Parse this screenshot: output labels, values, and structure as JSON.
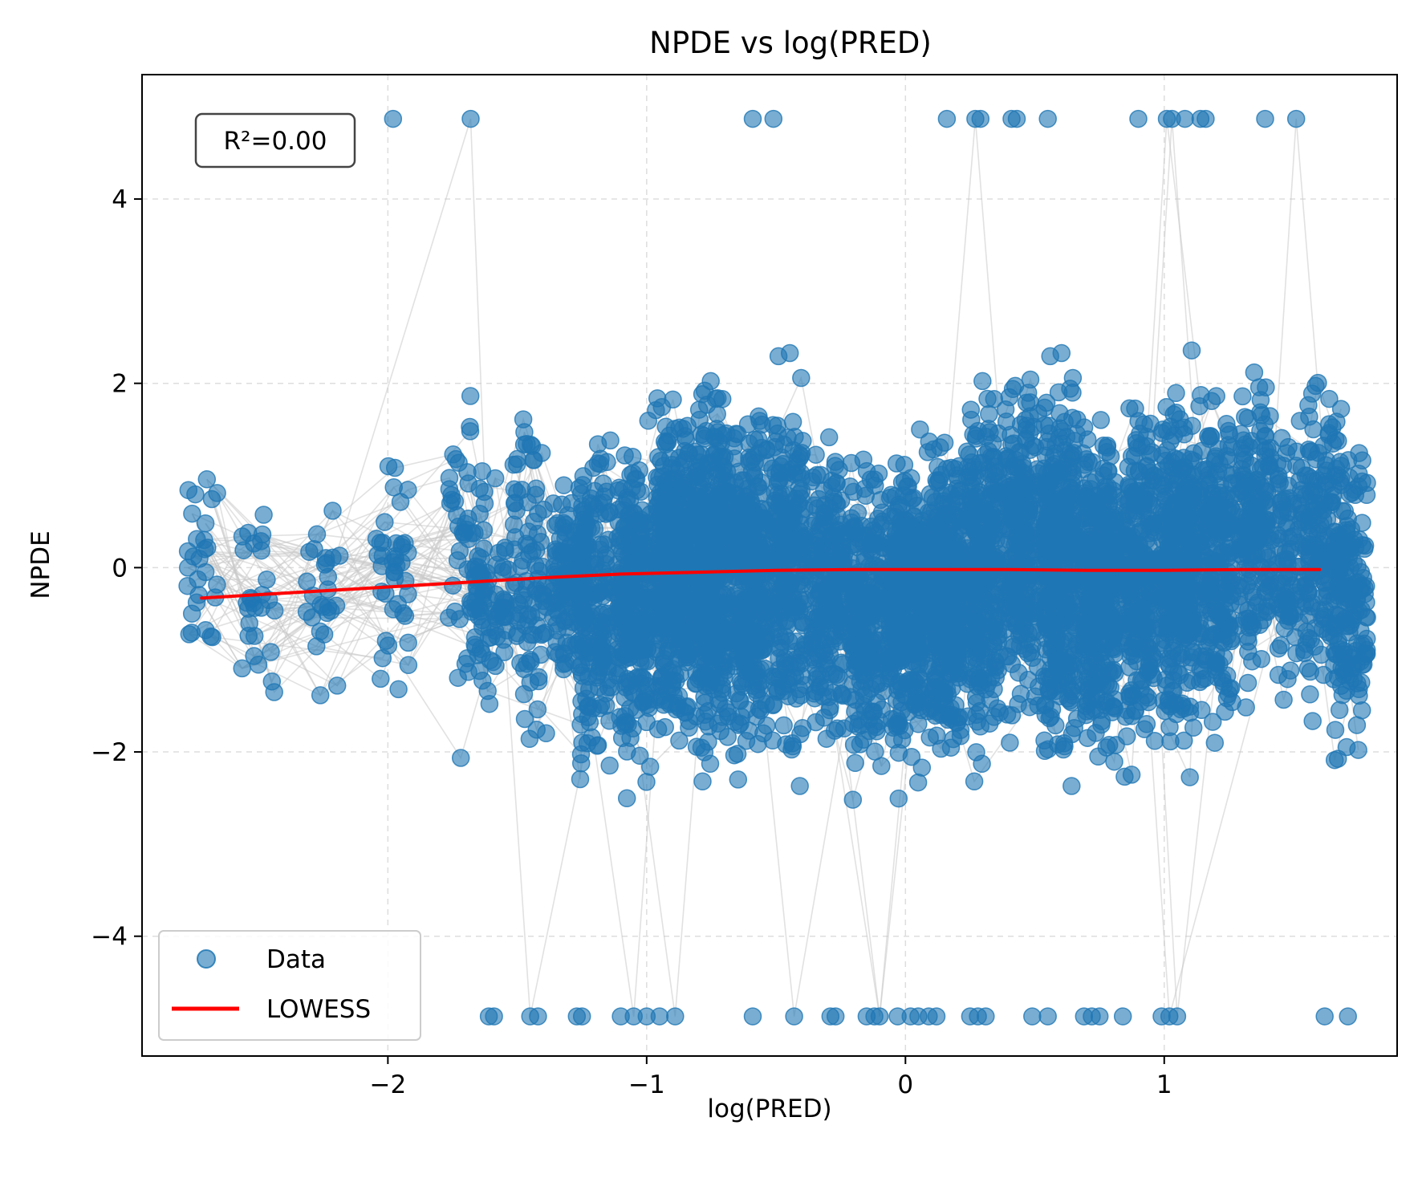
{
  "chart_data": {
    "type": "scatter",
    "title": "NPDE vs log(PRED)",
    "xlabel": "log(PRED)",
    "ylabel": "NPDE",
    "xlim": [
      -2.95,
      1.9
    ],
    "ylim": [
      -5.3,
      5.35
    ],
    "grid": true,
    "legend_placement": "lower-left",
    "annotation": "R²=0.00",
    "x_ticks": [
      -2,
      -1,
      0,
      1
    ],
    "x_tick_labels": [
      "−2",
      "−1",
      "0",
      "1"
    ],
    "y_ticks": [
      -4,
      -2,
      0,
      2,
      4
    ],
    "y_tick_labels": [
      "−4",
      "−2",
      "0",
      "2",
      "4"
    ],
    "colors": {
      "data": "#1f77b4",
      "lowess": "#ff0000",
      "connector": "#c8c8c8",
      "grid": "#dddddd"
    },
    "series": [
      {
        "name": "Data",
        "kind": "scatter",
        "clusters": [
          {
            "x": -2.72,
            "count": 28,
            "y_min": -1.6,
            "y_max": 1.35
          },
          {
            "x": -2.5,
            "count": 28,
            "y_min": -2.05,
            "y_max": 1.5
          },
          {
            "x": -2.25,
            "count": 26,
            "y_min": -1.45,
            "y_max": 1.2
          },
          {
            "x": -1.98,
            "count": 40,
            "y_min": -1.75,
            "y_max": 1.55
          },
          {
            "x": -1.7,
            "count": 55,
            "y_min": -2.2,
            "y_max": 2.2
          },
          {
            "x": -1.6,
            "count": 70,
            "y_min": -1.8,
            "y_max": 1.0
          },
          {
            "x": -1.45,
            "count": 90,
            "y_min": -2.6,
            "y_max": 2.35
          },
          {
            "x": -1.3,
            "count": 130,
            "y_min": -1.5,
            "y_max": 1.2
          },
          {
            "x": -1.2,
            "count": 180,
            "y_min": -2.6,
            "y_max": 1.9
          },
          {
            "x": -1.05,
            "count": 260,
            "y_min": -2.6,
            "y_max": 1.8
          },
          {
            "x": -0.9,
            "count": 350,
            "y_min": -2.6,
            "y_max": 2.6
          },
          {
            "x": -0.75,
            "count": 420,
            "y_min": -2.6,
            "y_max": 2.6
          },
          {
            "x": -0.6,
            "count": 320,
            "y_min": -2.6,
            "y_max": 2.2
          },
          {
            "x": -0.45,
            "count": 260,
            "y_min": -2.6,
            "y_max": 2.6
          },
          {
            "x": -0.3,
            "count": 220,
            "y_min": -2.35,
            "y_max": 1.95
          },
          {
            "x": -0.15,
            "count": 240,
            "y_min": -2.6,
            "y_max": 1.75
          },
          {
            "x": 0.0,
            "count": 330,
            "y_min": -2.6,
            "y_max": 1.7
          },
          {
            "x": 0.15,
            "count": 360,
            "y_min": -2.6,
            "y_max": 2.05
          },
          {
            "x": 0.3,
            "count": 300,
            "y_min": -2.6,
            "y_max": 2.6
          },
          {
            "x": 0.45,
            "count": 250,
            "y_min": -2.2,
            "y_max": 2.6
          },
          {
            "x": 0.6,
            "count": 380,
            "y_min": -2.6,
            "y_max": 2.6
          },
          {
            "x": 0.75,
            "count": 360,
            "y_min": -2.6,
            "y_max": 2.2
          },
          {
            "x": 0.9,
            "count": 260,
            "y_min": -2.35,
            "y_max": 2.35
          },
          {
            "x": 1.05,
            "count": 340,
            "y_min": -2.6,
            "y_max": 2.6
          },
          {
            "x": 1.2,
            "count": 230,
            "y_min": -2.35,
            "y_max": 2.6
          },
          {
            "x": 1.35,
            "count": 180,
            "y_min": -1.75,
            "y_max": 2.6
          },
          {
            "x": 1.5,
            "count": 120,
            "y_min": -1.95,
            "y_max": 2.2
          },
          {
            "x": 1.62,
            "count": 140,
            "y_min": -1.95,
            "y_max": 2.6
          },
          {
            "x": 1.72,
            "count": 160,
            "y_min": -2.6,
            "y_max": 1.75
          }
        ],
        "points": [
          {
            "x": -1.98,
            "y": 4.87
          },
          {
            "x": -1.68,
            "y": 4.87
          },
          {
            "x": -0.59,
            "y": 4.87
          },
          {
            "x": -0.51,
            "y": 4.87
          },
          {
            "x": 0.16,
            "y": 4.87
          },
          {
            "x": 0.27,
            "y": 4.87
          },
          {
            "x": 0.29,
            "y": 4.87
          },
          {
            "x": 0.41,
            "y": 4.87
          },
          {
            "x": 0.43,
            "y": 4.87
          },
          {
            "x": 0.55,
            "y": 4.87
          },
          {
            "x": 0.9,
            "y": 4.87
          },
          {
            "x": 1.01,
            "y": 4.87
          },
          {
            "x": 1.03,
            "y": 4.87
          },
          {
            "x": 1.08,
            "y": 4.87
          },
          {
            "x": 1.14,
            "y": 4.87
          },
          {
            "x": 1.16,
            "y": 4.87
          },
          {
            "x": 1.39,
            "y": 4.87
          },
          {
            "x": 1.51,
            "y": 4.87
          },
          {
            "x": -1.61,
            "y": -4.87
          },
          {
            "x": -1.59,
            "y": -4.87
          },
          {
            "x": -1.45,
            "y": -4.87
          },
          {
            "x": -1.42,
            "y": -4.87
          },
          {
            "x": -1.27,
            "y": -4.87
          },
          {
            "x": -1.25,
            "y": -4.87
          },
          {
            "x": -1.1,
            "y": -4.87
          },
          {
            "x": -1.05,
            "y": -4.87
          },
          {
            "x": -1.0,
            "y": -4.87
          },
          {
            "x": -0.95,
            "y": -4.87
          },
          {
            "x": -0.89,
            "y": -4.87
          },
          {
            "x": -0.59,
            "y": -4.87
          },
          {
            "x": -0.43,
            "y": -4.87
          },
          {
            "x": -0.29,
            "y": -4.87
          },
          {
            "x": -0.27,
            "y": -4.87
          },
          {
            "x": -0.15,
            "y": -4.87
          },
          {
            "x": -0.12,
            "y": -4.87
          },
          {
            "x": -0.1,
            "y": -4.87
          },
          {
            "x": -0.03,
            "y": -4.87
          },
          {
            "x": 0.02,
            "y": -4.87
          },
          {
            "x": 0.05,
            "y": -4.87
          },
          {
            "x": 0.09,
            "y": -4.87
          },
          {
            "x": 0.12,
            "y": -4.87
          },
          {
            "x": 0.25,
            "y": -4.87
          },
          {
            "x": 0.28,
            "y": -4.87
          },
          {
            "x": 0.31,
            "y": -4.87
          },
          {
            "x": 0.49,
            "y": -4.87
          },
          {
            "x": 0.55,
            "y": -4.87
          },
          {
            "x": 0.69,
            "y": -4.87
          },
          {
            "x": 0.72,
            "y": -4.87
          },
          {
            "x": 0.75,
            "y": -4.87
          },
          {
            "x": 0.84,
            "y": -4.87
          },
          {
            "x": 0.99,
            "y": -4.87
          },
          {
            "x": 1.02,
            "y": -4.87
          },
          {
            "x": 1.05,
            "y": -4.87
          },
          {
            "x": 1.62,
            "y": -4.87
          },
          {
            "x": 1.71,
            "y": -4.87
          }
        ]
      },
      {
        "name": "LOWESS",
        "kind": "line",
        "x": [
          -2.72,
          -2.3,
          -2.0,
          -1.7,
          -1.4,
          -1.1,
          -0.8,
          -0.5,
          -0.2,
          0.1,
          0.4,
          0.7,
          1.0,
          1.3,
          1.6
        ],
        "y": [
          -0.33,
          -0.26,
          -0.21,
          -0.16,
          -0.11,
          -0.07,
          -0.05,
          -0.03,
          -0.02,
          -0.02,
          -0.02,
          -0.03,
          -0.03,
          -0.02,
          -0.02
        ]
      }
    ]
  }
}
